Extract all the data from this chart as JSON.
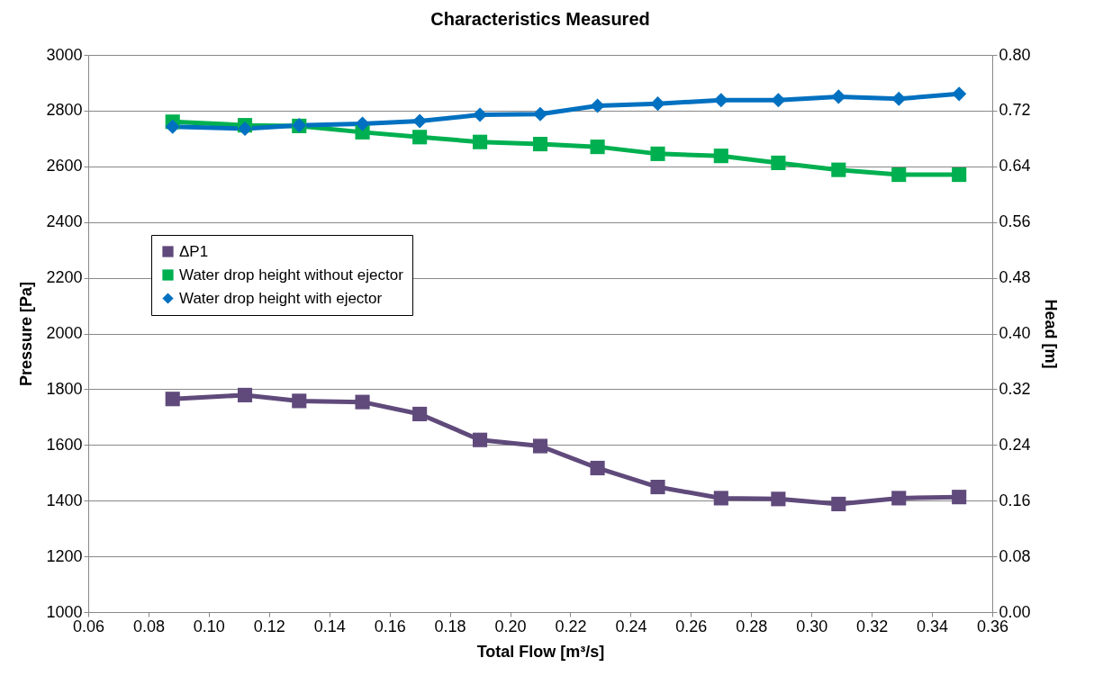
{
  "chart_data": {
    "type": "line",
    "title": "Characteristics Measured",
    "xlabel": "Total Flow [m³/s]",
    "ylabel": "Pressure   [Pa]",
    "y2label": "Head [m]",
    "x": [
      0.088,
      0.112,
      0.13,
      0.151,
      0.17,
      0.19,
      0.21,
      0.229,
      0.249,
      0.27,
      0.289,
      0.309,
      0.329,
      0.349
    ],
    "series": [
      {
        "name": "ΔP1",
        "color": "#604a7b",
        "marker": "square",
        "values": [
          1765,
          1779,
          1758,
          1754,
          1711,
          1618,
          1596,
          1517,
          1449,
          1409,
          1406,
          1388,
          1409,
          1413
        ]
      },
      {
        "name": "Water drop height without ejector",
        "color": "#00b050",
        "marker": "square",
        "axis": "y2",
        "values": [
          0.704,
          0.699,
          0.698,
          0.689,
          0.682,
          0.675,
          0.672,
          0.668,
          0.658,
          0.655,
          0.645,
          0.635,
          0.628,
          0.628
        ]
      },
      {
        "name": "Water drop height with ejector",
        "color": "#0070c0",
        "marker": "diamond",
        "axis": "y2",
        "values": [
          0.697,
          0.694,
          0.699,
          0.701,
          0.705,
          0.714,
          0.715,
          0.727,
          0.73,
          0.735,
          0.735,
          0.74,
          0.737,
          0.744
        ]
      }
    ],
    "xlim": [
      0.06,
      0.36
    ],
    "xticks": [
      {
        "value": 0.06,
        "label": "0.06"
      },
      {
        "value": 0.08,
        "label": "0.08"
      },
      {
        "value": 0.1,
        "label": "0.10"
      },
      {
        "value": 0.12,
        "label": "0.12"
      },
      {
        "value": 0.14,
        "label": "0.14"
      },
      {
        "value": 0.16,
        "label": "0.16"
      },
      {
        "value": 0.18,
        "label": "0.18"
      },
      {
        "value": 0.2,
        "label": "0.20"
      },
      {
        "value": 0.22,
        "label": "0.22"
      },
      {
        "value": 0.24,
        "label": "0.24"
      },
      {
        "value": 0.26,
        "label": "0.26"
      },
      {
        "value": 0.28,
        "label": "0.28"
      },
      {
        "value": 0.3,
        "label": "0.30"
      },
      {
        "value": 0.32,
        "label": "0.32"
      },
      {
        "value": 0.34,
        "label": "0.34"
      },
      {
        "value": 0.36,
        "label": "0.36"
      }
    ],
    "ylim": [
      1000,
      3000
    ],
    "yticks": [
      1000,
      1200,
      1400,
      1600,
      1800,
      2000,
      2200,
      2400,
      2600,
      2800,
      3000
    ],
    "y2lim": [
      0,
      0.8
    ],
    "y2ticks": [
      {
        "value": 0,
        "label": "0.00"
      },
      {
        "value": 0.08,
        "label": "0.08"
      },
      {
        "value": 0.16,
        "label": "0.16"
      },
      {
        "value": 0.24,
        "label": "0.24"
      },
      {
        "value": 0.32,
        "label": "0.32"
      },
      {
        "value": 0.4,
        "label": "0.40"
      },
      {
        "value": 0.48,
        "label": "0.48"
      },
      {
        "value": 0.56,
        "label": "0.56"
      },
      {
        "value": 0.64,
        "label": "0.64"
      },
      {
        "value": 0.72,
        "label": "0.72"
      },
      {
        "value": 0.8,
        "label": "0.80"
      }
    ],
    "grid": "y",
    "legend": "left",
    "line_style": "solid"
  }
}
